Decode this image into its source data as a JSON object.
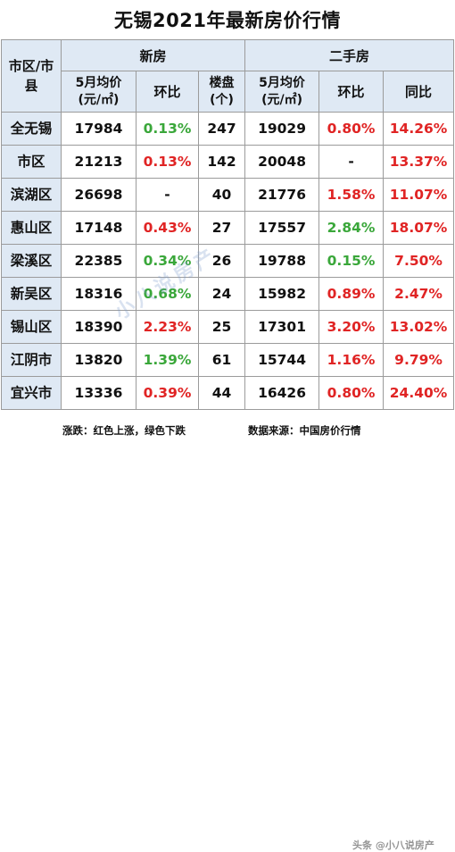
{
  "title": "无锡2021年最新房价行情",
  "headers": {
    "district": "市区/市县",
    "new_group": "新房",
    "second_group": "二手房",
    "new_avg": "5月均价\n(元/㎡)",
    "new_mom": "环比",
    "new_count": "楼盘\n(个)",
    "sec_avg": "5月均价\n(元/㎡)",
    "sec_mom": "环比",
    "sec_yoy": "同比"
  },
  "rows": [
    {
      "name": "全无锡",
      "new_avg": "17984",
      "new_mom": "0.13%",
      "new_mom_color": "green",
      "new_count": "247",
      "sec_avg": "19029",
      "sec_mom": "0.80%",
      "sec_mom_color": "red",
      "sec_yoy": "14.26%",
      "sec_yoy_color": "red"
    },
    {
      "name": "市区",
      "new_avg": "21213",
      "new_mom": "0.13%",
      "new_mom_color": "red",
      "new_count": "142",
      "sec_avg": "20048",
      "sec_mom": "-",
      "sec_mom_color": "dark",
      "sec_yoy": "13.37%",
      "sec_yoy_color": "red"
    },
    {
      "name": "滨湖区",
      "new_avg": "26698",
      "new_mom": "-",
      "new_mom_color": "dark",
      "new_count": "40",
      "sec_avg": "21776",
      "sec_mom": "1.58%",
      "sec_mom_color": "red",
      "sec_yoy": "11.07%",
      "sec_yoy_color": "red"
    },
    {
      "name": "惠山区",
      "new_avg": "17148",
      "new_mom": "0.43%",
      "new_mom_color": "red",
      "new_count": "27",
      "sec_avg": "17557",
      "sec_mom": "2.84%",
      "sec_mom_color": "green",
      "sec_yoy": "18.07%",
      "sec_yoy_color": "red"
    },
    {
      "name": "梁溪区",
      "new_avg": "22385",
      "new_mom": "0.34%",
      "new_mom_color": "green",
      "new_count": "26",
      "sec_avg": "19788",
      "sec_mom": "0.15%",
      "sec_mom_color": "green",
      "sec_yoy": "7.50%",
      "sec_yoy_color": "red"
    },
    {
      "name": "新吴区",
      "new_avg": "18316",
      "new_mom": "0.68%",
      "new_mom_color": "green",
      "new_count": "24",
      "sec_avg": "15982",
      "sec_mom": "0.89%",
      "sec_mom_color": "red",
      "sec_yoy": "2.47%",
      "sec_yoy_color": "red"
    },
    {
      "name": "锡山区",
      "new_avg": "18390",
      "new_mom": "2.23%",
      "new_mom_color": "red",
      "new_count": "25",
      "sec_avg": "17301",
      "sec_mom": "3.20%",
      "sec_mom_color": "red",
      "sec_yoy": "13.02%",
      "sec_yoy_color": "red"
    },
    {
      "name": "江阴市",
      "new_avg": "13820",
      "new_mom": "1.39%",
      "new_mom_color": "green",
      "new_count": "61",
      "sec_avg": "15744",
      "sec_mom": "1.16%",
      "sec_mom_color": "red",
      "sec_yoy": "9.79%",
      "sec_yoy_color": "red"
    },
    {
      "name": "宜兴市",
      "new_avg": "13336",
      "new_mom": "0.39%",
      "new_mom_color": "red",
      "new_count": "44",
      "sec_avg": "16426",
      "sec_mom": "0.80%",
      "sec_mom_color": "red",
      "sec_yoy": "24.40%",
      "sec_yoy_color": "red"
    }
  ],
  "footer": {
    "legend": "涨跌：红色上涨，绿色下跌",
    "source": "数据来源：中国房价行情"
  },
  "watermark": "小八说房产",
  "watermark2": "头条 @小八说房产",
  "colors": {
    "green": "#3aa73a",
    "red": "#e02424",
    "header_bg": "#dfe9f4",
    "border": "#9b9b9b"
  }
}
